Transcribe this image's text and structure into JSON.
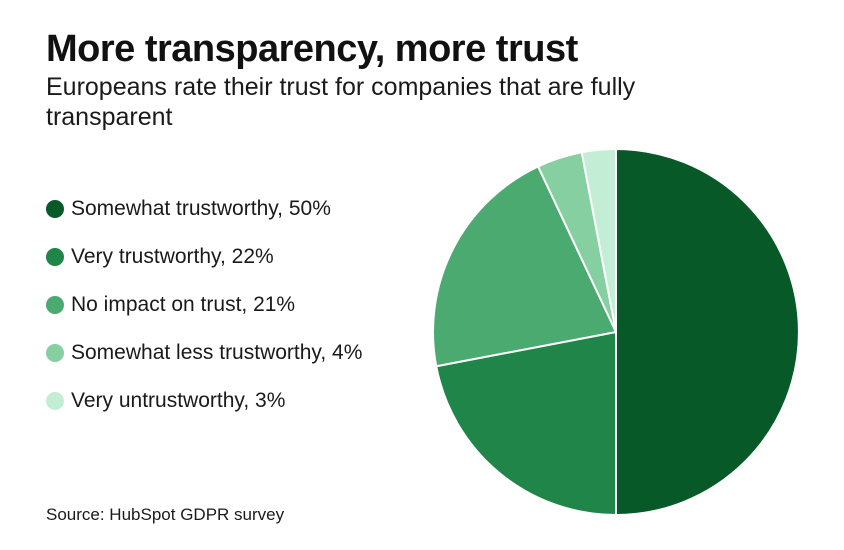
{
  "title": "More transparency, more trust",
  "subtitle": "Europeans rate their trust for companies that are fully transparent",
  "source": "Source: HubSpot GDPR survey",
  "colors": {
    "somewhat_trustworthy": "#075a28",
    "very_trustworthy": "#208548",
    "no_impact": "#4aaa70",
    "somewhat_less": "#85cfa1",
    "very_untrustworthy": "#c3edd4"
  },
  "legend": [
    {
      "label": "Somewhat trustworthy, 50%",
      "color": "#075a28"
    },
    {
      "label": "Very trustworthy, 22%",
      "color": "#208548"
    },
    {
      "label": "No impact on trust, 21%",
      "color": "#4aaa70"
    },
    {
      "label": "Somewhat less trustworthy, 4%",
      "color": "#85cfa1"
    },
    {
      "label": "Very untrustworthy, 3%",
      "color": "#c3edd4"
    }
  ],
  "chart_data": {
    "type": "pie",
    "title": "More transparency, more trust",
    "subtitle": "Europeans rate their trust for companies that are fully transparent",
    "start_angle": "12 o'clock, clockwise",
    "legend_position": "left",
    "slices": [
      {
        "name": "Somewhat trustworthy",
        "value": 50,
        "color": "#075a28"
      },
      {
        "name": "Very trustworthy",
        "value": 22,
        "color": "#208548"
      },
      {
        "name": "No impact on trust",
        "value": 21,
        "color": "#4aaa70"
      },
      {
        "name": "Somewhat less trustworthy",
        "value": 4,
        "color": "#85cfa1"
      },
      {
        "name": "Very untrustworthy",
        "value": 3,
        "color": "#c3edd4"
      }
    ]
  }
}
